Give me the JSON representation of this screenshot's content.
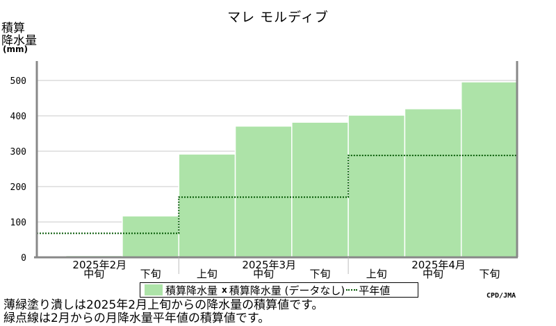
{
  "chart_data": {
    "type": "area",
    "title": "マレ モルディブ",
    "ylabel_lines": [
      "積算",
      "降水量"
    ],
    "yunit": "(mm)",
    "ylim": [
      0,
      500
    ],
    "yticks": [
      0,
      100,
      200,
      300,
      400,
      500
    ],
    "grid": true,
    "periods": [
      "2025年2月上旬",
      "2025年2月中旬",
      "2025年2月下旬",
      "2025年3月上旬",
      "2025年3月中旬",
      "2025年3月下旬",
      "2025年4月上旬",
      "2025年4月中旬",
      "2025年4月下旬"
    ],
    "decade_tick_labels": [
      {
        "label": "中旬",
        "period": 1
      },
      {
        "label": "下旬",
        "period": 2
      },
      {
        "label": "上旬",
        "period": 3
      },
      {
        "label": "中旬",
        "period": 4
      },
      {
        "label": "下旬",
        "period": 5
      },
      {
        "label": "上旬",
        "period": 6
      },
      {
        "label": "中旬",
        "period": 7
      },
      {
        "label": "下旬",
        "period": 8
      }
    ],
    "month_labels": [
      {
        "label": "2025年2月",
        "period": 1
      },
      {
        "label": "2025年3月",
        "period": 4
      },
      {
        "label": "2025年4月",
        "period": 7
      }
    ],
    "series": [
      {
        "name": "積算降水量",
        "style": "filled-step",
        "color": "#ade3a8",
        "values": [
          0,
          5,
          117,
          292,
          371,
          382,
          402,
          420,
          496
        ]
      },
      {
        "name": "積算降水量(データなし)",
        "style": "marker-x",
        "values": []
      },
      {
        "name": "平年値",
        "style": "dotted-step",
        "color": "#005500",
        "values": [
          68,
          68,
          68,
          170,
          170,
          170,
          288,
          288,
          288
        ]
      }
    ],
    "legend_position": "bottom",
    "source": "CPD/JMA"
  },
  "legend": {
    "item1": "積算降水量",
    "item2": "積算降水量 (データなし)",
    "item3": "平年値"
  },
  "notes": [
    "薄緑塗り潰しは2025年2月上旬からの降水量の積算値です。",
    "緑点線は2月からの月降水量平年値の積算値です。"
  ]
}
